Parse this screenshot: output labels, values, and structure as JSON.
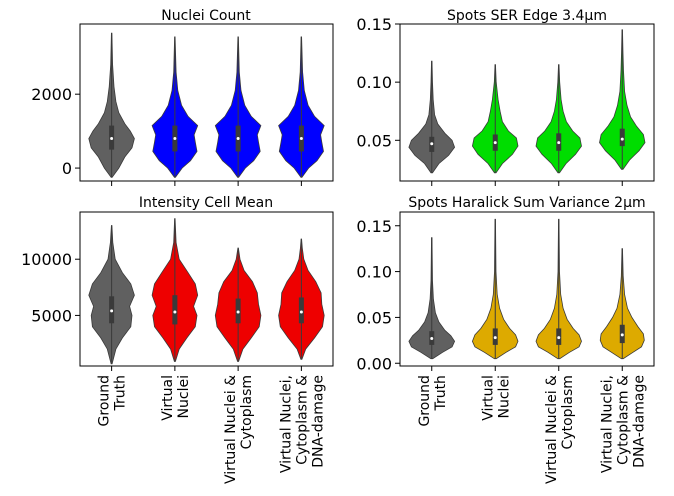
{
  "categories": [
    [
      "Ground",
      "Truth"
    ],
    [
      "Virtual",
      "Nuclei"
    ],
    [
      "Virtual Nuclei &",
      "Cytoplasm"
    ],
    [
      "Virtual Nuclei,",
      "Cytoplasm &",
      "DNA-damage"
    ]
  ],
  "chart_data": [
    {
      "type": "violin",
      "title": "Nuclei Count",
      "ylim": [
        -350,
        3900
      ],
      "yticks": [
        0,
        2000
      ],
      "colors": [
        "#606060",
        "#0000ff",
        "#0000ff",
        "#0000ff"
      ],
      "violins": [
        {
          "min": -250,
          "q1": 500,
          "median": 800,
          "q3": 1150,
          "max": 3650,
          "profile": [
            [
              -250,
              0.02
            ],
            [
              0,
              0.3
            ],
            [
              300,
              0.55
            ],
            [
              550,
              0.85
            ],
            [
              800,
              0.95
            ],
            [
              1000,
              0.78
            ],
            [
              1200,
              0.55
            ],
            [
              1500,
              0.3
            ],
            [
              1800,
              0.18
            ],
            [
              2200,
              0.1
            ],
            [
              2800,
              0.04
            ],
            [
              3650,
              0.01
            ]
          ]
        },
        {
          "min": -250,
          "q1": 450,
          "median": 800,
          "q3": 1150,
          "max": 3550,
          "profile": [
            [
              -250,
              0.02
            ],
            [
              0,
              0.3
            ],
            [
              200,
              0.65
            ],
            [
              450,
              0.92
            ],
            [
              700,
              0.85
            ],
            [
              900,
              0.8
            ],
            [
              1150,
              0.95
            ],
            [
              1400,
              0.55
            ],
            [
              1700,
              0.28
            ],
            [
              2100,
              0.12
            ],
            [
              2600,
              0.05
            ],
            [
              3550,
              0.01
            ]
          ]
        },
        {
          "min": -250,
          "q1": 450,
          "median": 800,
          "q3": 1150,
          "max": 3550,
          "profile": [
            [
              -250,
              0.02
            ],
            [
              0,
              0.3
            ],
            [
              200,
              0.65
            ],
            [
              450,
              0.92
            ],
            [
              700,
              0.85
            ],
            [
              900,
              0.8
            ],
            [
              1150,
              0.95
            ],
            [
              1400,
              0.55
            ],
            [
              1700,
              0.28
            ],
            [
              2100,
              0.12
            ],
            [
              2600,
              0.05
            ],
            [
              3550,
              0.01
            ]
          ]
        },
        {
          "min": -250,
          "q1": 450,
          "median": 800,
          "q3": 1150,
          "max": 3550,
          "profile": [
            [
              -250,
              0.02
            ],
            [
              0,
              0.3
            ],
            [
              200,
              0.65
            ],
            [
              450,
              0.92
            ],
            [
              700,
              0.85
            ],
            [
              900,
              0.8
            ],
            [
              1150,
              0.95
            ],
            [
              1400,
              0.55
            ],
            [
              1700,
              0.28
            ],
            [
              2100,
              0.12
            ],
            [
              2600,
              0.05
            ],
            [
              3550,
              0.01
            ]
          ]
        }
      ]
    },
    {
      "type": "violin",
      "title": "Spots SER Edge 3.4µm",
      "ylim": [
        0.015,
        0.15
      ],
      "yticks": [
        0.05,
        0.1,
        0.15
      ],
      "yticklabels": [
        "0.05",
        "0.10",
        "0.15"
      ],
      "colors": [
        "#606060",
        "#00dd00",
        "#00dd00",
        "#00dd00"
      ],
      "violins": [
        {
          "min": 0.022,
          "q1": 0.04,
          "median": 0.047,
          "q3": 0.053,
          "max": 0.118,
          "profile": [
            [
              0.022,
              0.03
            ],
            [
              0.03,
              0.3
            ],
            [
              0.037,
              0.7
            ],
            [
              0.044,
              0.95
            ],
            [
              0.05,
              0.85
            ],
            [
              0.056,
              0.55
            ],
            [
              0.064,
              0.25
            ],
            [
              0.072,
              0.12
            ],
            [
              0.085,
              0.06
            ],
            [
              0.1,
              0.03
            ],
            [
              0.118,
              0.01
            ]
          ]
        },
        {
          "min": 0.022,
          "q1": 0.041,
          "median": 0.048,
          "q3": 0.055,
          "max": 0.115,
          "profile": [
            [
              0.022,
              0.03
            ],
            [
              0.03,
              0.3
            ],
            [
              0.038,
              0.72
            ],
            [
              0.045,
              0.95
            ],
            [
              0.052,
              0.88
            ],
            [
              0.058,
              0.55
            ],
            [
              0.066,
              0.3
            ],
            [
              0.075,
              0.2
            ],
            [
              0.085,
              0.12
            ],
            [
              0.1,
              0.04
            ],
            [
              0.115,
              0.01
            ]
          ]
        },
        {
          "min": 0.022,
          "q1": 0.041,
          "median": 0.048,
          "q3": 0.056,
          "max": 0.115,
          "profile": [
            [
              0.022,
              0.03
            ],
            [
              0.03,
              0.3
            ],
            [
              0.038,
              0.7
            ],
            [
              0.045,
              0.95
            ],
            [
              0.052,
              0.88
            ],
            [
              0.058,
              0.58
            ],
            [
              0.066,
              0.32
            ],
            [
              0.075,
              0.18
            ],
            [
              0.085,
              0.1
            ],
            [
              0.1,
              0.04
            ],
            [
              0.115,
              0.01
            ]
          ]
        },
        {
          "min": 0.025,
          "q1": 0.045,
          "median": 0.051,
          "q3": 0.06,
          "max": 0.145,
          "profile": [
            [
              0.025,
              0.03
            ],
            [
              0.033,
              0.3
            ],
            [
              0.041,
              0.7
            ],
            [
              0.048,
              0.95
            ],
            [
              0.055,
              0.88
            ],
            [
              0.062,
              0.6
            ],
            [
              0.07,
              0.35
            ],
            [
              0.08,
              0.2
            ],
            [
              0.092,
              0.1
            ],
            [
              0.11,
              0.05
            ],
            [
              0.125,
              0.03
            ],
            [
              0.145,
              0.01
            ]
          ]
        }
      ]
    },
    {
      "type": "violin",
      "title": "Intensity Cell Mean",
      "ylim": [
        500,
        14200
      ],
      "yticks": [
        5000,
        10000
      ],
      "colors": [
        "#606060",
        "#ee0000",
        "#ee0000",
        "#ee0000"
      ],
      "violins": [
        {
          "min": 700,
          "q1": 4300,
          "median": 5400,
          "q3": 6700,
          "max": 13000,
          "profile": [
            [
              700,
              0.02
            ],
            [
              2000,
              0.18
            ],
            [
              3000,
              0.45
            ],
            [
              4000,
              0.8
            ],
            [
              5000,
              0.85
            ],
            [
              5800,
              0.75
            ],
            [
              6800,
              0.95
            ],
            [
              7800,
              0.8
            ],
            [
              8800,
              0.45
            ],
            [
              10000,
              0.15
            ],
            [
              11500,
              0.05
            ],
            [
              13000,
              0.01
            ]
          ]
        },
        {
          "min": 900,
          "q1": 4200,
          "median": 5300,
          "q3": 6800,
          "max": 13600,
          "profile": [
            [
              900,
              0.02
            ],
            [
              2000,
              0.18
            ],
            [
              3000,
              0.5
            ],
            [
              4000,
              0.85
            ],
            [
              5000,
              0.92
            ],
            [
              5800,
              0.78
            ],
            [
              6800,
              0.95
            ],
            [
              7800,
              0.85
            ],
            [
              8800,
              0.55
            ],
            [
              10000,
              0.18
            ],
            [
              11500,
              0.05
            ],
            [
              13600,
              0.01
            ]
          ]
        },
        {
          "min": 900,
          "q1": 4300,
          "median": 5300,
          "q3": 6500,
          "max": 11000,
          "profile": [
            [
              900,
              0.02
            ],
            [
              2000,
              0.2
            ],
            [
              3000,
              0.55
            ],
            [
              4000,
              0.88
            ],
            [
              5000,
              0.95
            ],
            [
              6000,
              0.85
            ],
            [
              7000,
              0.8
            ],
            [
              8000,
              0.6
            ],
            [
              9000,
              0.25
            ],
            [
              10000,
              0.08
            ],
            [
              11000,
              0.01
            ]
          ]
        },
        {
          "min": 1100,
          "q1": 4300,
          "median": 5300,
          "q3": 6600,
          "max": 11800,
          "profile": [
            [
              1100,
              0.02
            ],
            [
              2000,
              0.18
            ],
            [
              3000,
              0.55
            ],
            [
              4000,
              0.88
            ],
            [
              5000,
              0.95
            ],
            [
              6000,
              0.85
            ],
            [
              7000,
              0.82
            ],
            [
              8000,
              0.6
            ],
            [
              9000,
              0.28
            ],
            [
              10000,
              0.1
            ],
            [
              11000,
              0.04
            ],
            [
              11800,
              0.01
            ]
          ]
        }
      ]
    },
    {
      "type": "violin",
      "title": "Spots Haralick Sum Variance 2µm",
      "ylim": [
        -0.003,
        0.165
      ],
      "yticks": [
        0.0,
        0.05,
        0.1,
        0.15
      ],
      "yticklabels": [
        "0.00",
        "0.05",
        "0.10",
        "0.15"
      ],
      "colors": [
        "#606060",
        "#ddaa00",
        "#ddaa00",
        "#ddaa00"
      ],
      "violins": [
        {
          "min": 0.005,
          "q1": 0.02,
          "median": 0.027,
          "q3": 0.035,
          "max": 0.137,
          "profile": [
            [
              0.005,
              0.04
            ],
            [
              0.012,
              0.45
            ],
            [
              0.018,
              0.85
            ],
            [
              0.024,
              0.95
            ],
            [
              0.03,
              0.8
            ],
            [
              0.036,
              0.55
            ],
            [
              0.045,
              0.3
            ],
            [
              0.055,
              0.15
            ],
            [
              0.07,
              0.07
            ],
            [
              0.09,
              0.03
            ],
            [
              0.137,
              0.01
            ]
          ]
        },
        {
          "min": 0.005,
          "q1": 0.02,
          "median": 0.028,
          "q3": 0.038,
          "max": 0.157,
          "profile": [
            [
              0.005,
              0.04
            ],
            [
              0.012,
              0.45
            ],
            [
              0.018,
              0.85
            ],
            [
              0.024,
              0.95
            ],
            [
              0.031,
              0.85
            ],
            [
              0.038,
              0.6
            ],
            [
              0.048,
              0.35
            ],
            [
              0.06,
              0.18
            ],
            [
              0.075,
              0.08
            ],
            [
              0.1,
              0.03
            ],
            [
              0.157,
              0.01
            ]
          ]
        },
        {
          "min": 0.005,
          "q1": 0.02,
          "median": 0.028,
          "q3": 0.038,
          "max": 0.157,
          "profile": [
            [
              0.005,
              0.04
            ],
            [
              0.012,
              0.45
            ],
            [
              0.018,
              0.85
            ],
            [
              0.024,
              0.95
            ],
            [
              0.031,
              0.85
            ],
            [
              0.038,
              0.6
            ],
            [
              0.048,
              0.35
            ],
            [
              0.06,
              0.18
            ],
            [
              0.075,
              0.08
            ],
            [
              0.1,
              0.03
            ],
            [
              0.157,
              0.01
            ]
          ]
        },
        {
          "min": 0.005,
          "q1": 0.022,
          "median": 0.031,
          "q3": 0.042,
          "max": 0.125,
          "profile": [
            [
              0.005,
              0.04
            ],
            [
              0.012,
              0.45
            ],
            [
              0.018,
              0.8
            ],
            [
              0.025,
              0.92
            ],
            [
              0.032,
              0.88
            ],
            [
              0.04,
              0.65
            ],
            [
              0.05,
              0.4
            ],
            [
              0.06,
              0.22
            ],
            [
              0.075,
              0.1
            ],
            [
              0.095,
              0.04
            ],
            [
              0.125,
              0.01
            ]
          ]
        }
      ]
    }
  ]
}
